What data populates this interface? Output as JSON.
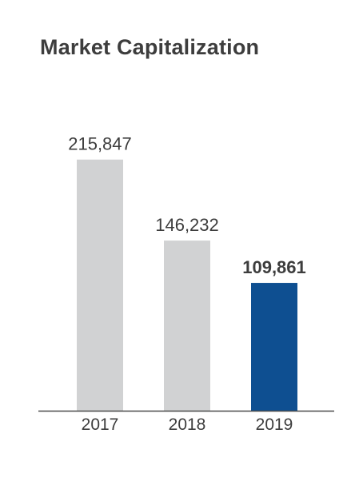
{
  "chart_data": {
    "type": "bar",
    "title": "Market Capitalization",
    "categories": [
      "2017",
      "2018",
      "2019"
    ],
    "values": [
      215847,
      146232,
      109861
    ],
    "value_labels": [
      "215,847",
      "146,232",
      "109,861"
    ],
    "highlight_index": 2,
    "ylim": [
      0,
      250000
    ],
    "grid": false,
    "legend": "none",
    "colors": {
      "bar": "#d1d2d3",
      "highlight": "#0e4f91",
      "axis": "#4a4a4a",
      "text": "#3d3d3d"
    }
  }
}
